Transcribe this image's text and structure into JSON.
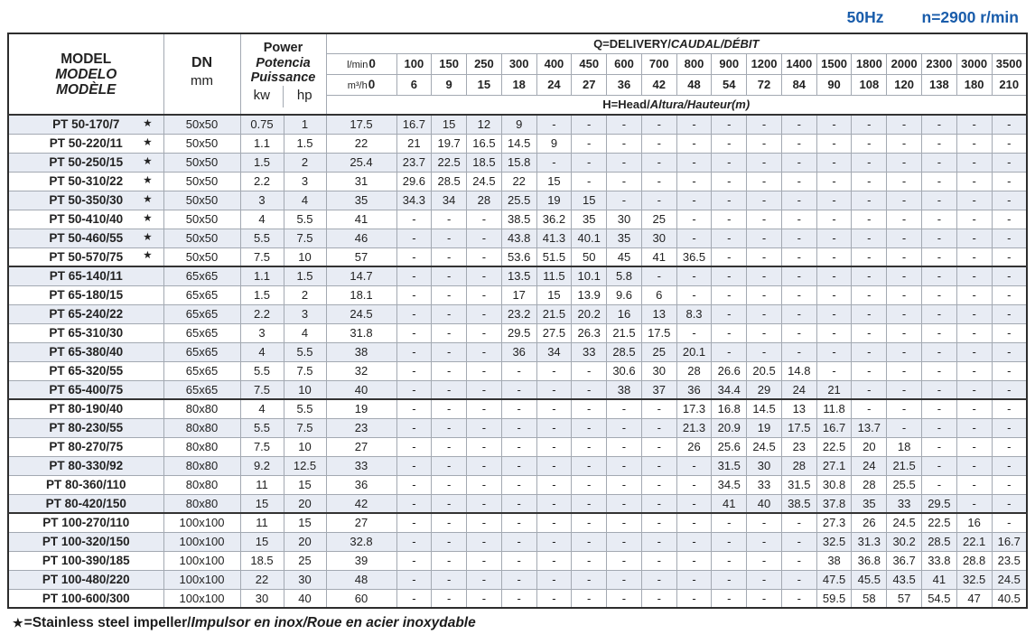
{
  "page_title": {
    "frequency": "50Hz",
    "speed": "n=2900 r/min"
  },
  "table": {
    "header": {
      "model_lines": [
        "MODEL",
        "MODELO",
        "MODÈLE"
      ],
      "dn_label": "DN",
      "dn_unit": "mm",
      "power_lines": [
        "Power",
        "Potencia",
        "Puissance"
      ],
      "power_unit_kw": "kw",
      "power_unit_hp": "hp",
      "delivery_plain": "Q=DELIVERY/",
      "delivery_italic": "CAUDAL/DÉBIT",
      "head_plain": "H=Head/",
      "head_italic": "Altura/Hauteur(m)",
      "lmin_label": "l/min",
      "m3h_label": "m³/h",
      "lmin_values": [
        "0",
        "100",
        "150",
        "250",
        "300",
        "400",
        "450",
        "600",
        "700",
        "800",
        "900",
        "1200",
        "1400",
        "1500",
        "1800",
        "2000",
        "2300",
        "3000",
        "3500"
      ],
      "m3h_values": [
        "0",
        "6",
        "9",
        "15",
        "18",
        "24",
        "27",
        "36",
        "42",
        "48",
        "54",
        "72",
        "84",
        "90",
        "108",
        "120",
        "138",
        "180",
        "210"
      ]
    },
    "star_symbol": "★",
    "rows": [
      {
        "model": "PT 50-170/7",
        "star": true,
        "dn": "50x50",
        "kw": "0.75",
        "hp": "1",
        "section_start": false,
        "values": [
          "17.5",
          "16.7",
          "15",
          "12",
          "9",
          "-",
          "-",
          "-",
          "-",
          "-",
          "-",
          "-",
          "-",
          "-",
          "-",
          "-",
          "-",
          "-",
          "-"
        ]
      },
      {
        "model": "PT 50-220/11",
        "star": true,
        "dn": "50x50",
        "kw": "1.1",
        "hp": "1.5",
        "section_start": false,
        "values": [
          "22",
          "21",
          "19.7",
          "16.5",
          "14.5",
          "9",
          "-",
          "-",
          "-",
          "-",
          "-",
          "-",
          "-",
          "-",
          "-",
          "-",
          "-",
          "-",
          "-"
        ]
      },
      {
        "model": "PT 50-250/15",
        "star": true,
        "dn": "50x50",
        "kw": "1.5",
        "hp": "2",
        "section_start": false,
        "values": [
          "25.4",
          "23.7",
          "22.5",
          "18.5",
          "15.8",
          "-",
          "-",
          "-",
          "-",
          "-",
          "-",
          "-",
          "-",
          "-",
          "-",
          "-",
          "-",
          "-",
          "-"
        ]
      },
      {
        "model": "PT 50-310/22",
        "star": true,
        "dn": "50x50",
        "kw": "2.2",
        "hp": "3",
        "section_start": false,
        "values": [
          "31",
          "29.6",
          "28.5",
          "24.5",
          "22",
          "15",
          "-",
          "-",
          "-",
          "-",
          "-",
          "-",
          "-",
          "-",
          "-",
          "-",
          "-",
          "-",
          "-"
        ]
      },
      {
        "model": "PT 50-350/30",
        "star": true,
        "dn": "50x50",
        "kw": "3",
        "hp": "4",
        "section_start": false,
        "values": [
          "35",
          "34.3",
          "34",
          "28",
          "25.5",
          "19",
          "15",
          "-",
          "-",
          "-",
          "-",
          "-",
          "-",
          "-",
          "-",
          "-",
          "-",
          "-",
          "-"
        ]
      },
      {
        "model": "PT 50-410/40",
        "star": true,
        "dn": "50x50",
        "kw": "4",
        "hp": "5.5",
        "section_start": false,
        "values": [
          "41",
          "-",
          "-",
          "-",
          "38.5",
          "36.2",
          "35",
          "30",
          "25",
          "-",
          "-",
          "-",
          "-",
          "-",
          "-",
          "-",
          "-",
          "-",
          "-"
        ]
      },
      {
        "model": "PT 50-460/55",
        "star": true,
        "dn": "50x50",
        "kw": "5.5",
        "hp": "7.5",
        "section_start": false,
        "values": [
          "46",
          "-",
          "-",
          "-",
          "43.8",
          "41.3",
          "40.1",
          "35",
          "30",
          "-",
          "-",
          "-",
          "-",
          "-",
          "-",
          "-",
          "-",
          "-",
          "-"
        ]
      },
      {
        "model": "PT 50-570/75",
        "star": true,
        "dn": "50x50",
        "kw": "7.5",
        "hp": "10",
        "section_start": false,
        "values": [
          "57",
          "-",
          "-",
          "-",
          "53.6",
          "51.5",
          "50",
          "45",
          "41",
          "36.5",
          "-",
          "-",
          "-",
          "-",
          "-",
          "-",
          "-",
          "-",
          "-"
        ]
      },
      {
        "model": "PT 65-140/11",
        "star": false,
        "dn": "65x65",
        "kw": "1.1",
        "hp": "1.5",
        "section_start": true,
        "values": [
          "14.7",
          "-",
          "-",
          "-",
          "13.5",
          "11.5",
          "10.1",
          "5.8",
          "-",
          "-",
          "-",
          "-",
          "-",
          "-",
          "-",
          "-",
          "-",
          "-",
          "-"
        ]
      },
      {
        "model": "PT 65-180/15",
        "star": false,
        "dn": "65x65",
        "kw": "1.5",
        "hp": "2",
        "section_start": false,
        "values": [
          "18.1",
          "-",
          "-",
          "-",
          "17",
          "15",
          "13.9",
          "9.6",
          "6",
          "-",
          "-",
          "-",
          "-",
          "-",
          "-",
          "-",
          "-",
          "-",
          "-"
        ]
      },
      {
        "model": "PT 65-240/22",
        "star": false,
        "dn": "65x65",
        "kw": "2.2",
        "hp": "3",
        "section_start": false,
        "values": [
          "24.5",
          "-",
          "-",
          "-",
          "23.2",
          "21.5",
          "20.2",
          "16",
          "13",
          "8.3",
          "-",
          "-",
          "-",
          "-",
          "-",
          "-",
          "-",
          "-",
          "-"
        ]
      },
      {
        "model": "PT 65-310/30",
        "star": false,
        "dn": "65x65",
        "kw": "3",
        "hp": "4",
        "section_start": false,
        "values": [
          "31.8",
          "-",
          "-",
          "-",
          "29.5",
          "27.5",
          "26.3",
          "21.5",
          "17.5",
          "-",
          "-",
          "-",
          "-",
          "-",
          "-",
          "-",
          "-",
          "-",
          "-"
        ]
      },
      {
        "model": "PT 65-380/40",
        "star": false,
        "dn": "65x65",
        "kw": "4",
        "hp": "5.5",
        "section_start": false,
        "values": [
          "38",
          "-",
          "-",
          "-",
          "36",
          "34",
          "33",
          "28.5",
          "25",
          "20.1",
          "-",
          "-",
          "-",
          "-",
          "-",
          "-",
          "-",
          "-",
          "-"
        ]
      },
      {
        "model": "PT 65-320/55",
        "star": false,
        "dn": "65x65",
        "kw": "5.5",
        "hp": "7.5",
        "section_start": false,
        "values": [
          "32",
          "-",
          "-",
          "-",
          "-",
          "-",
          "-",
          "30.6",
          "30",
          "28",
          "26.6",
          "20.5",
          "14.8",
          "-",
          "-",
          "-",
          "-",
          "-",
          "-"
        ]
      },
      {
        "model": "PT 65-400/75",
        "star": false,
        "dn": "65x65",
        "kw": "7.5",
        "hp": "10",
        "section_start": false,
        "values": [
          "40",
          "-",
          "-",
          "-",
          "-",
          "-",
          "-",
          "38",
          "37",
          "36",
          "34.4",
          "29",
          "24",
          "21",
          "-",
          "-",
          "-",
          "-",
          "-"
        ]
      },
      {
        "model": "PT 80-190/40",
        "star": false,
        "dn": "80x80",
        "kw": "4",
        "hp": "5.5",
        "section_start": true,
        "values": [
          "19",
          "-",
          "-",
          "-",
          "-",
          "-",
          "-",
          "-",
          "-",
          "17.3",
          "16.8",
          "14.5",
          "13",
          "11.8",
          "-",
          "-",
          "-",
          "-",
          "-"
        ]
      },
      {
        "model": "PT 80-230/55",
        "star": false,
        "dn": "80x80",
        "kw": "5.5",
        "hp": "7.5",
        "section_start": false,
        "values": [
          "23",
          "-",
          "-",
          "-",
          "-",
          "-",
          "-",
          "-",
          "-",
          "21.3",
          "20.9",
          "19",
          "17.5",
          "16.7",
          "13.7",
          "-",
          "-",
          "-",
          "-"
        ]
      },
      {
        "model": "PT 80-270/75",
        "star": false,
        "dn": "80x80",
        "kw": "7.5",
        "hp": "10",
        "section_start": false,
        "values": [
          "27",
          "-",
          "-",
          "-",
          "-",
          "-",
          "-",
          "-",
          "-",
          "26",
          "25.6",
          "24.5",
          "23",
          "22.5",
          "20",
          "18",
          "-",
          "-",
          "-"
        ]
      },
      {
        "model": "PT 80-330/92",
        "star": false,
        "dn": "80x80",
        "kw": "9.2",
        "hp": "12.5",
        "section_start": false,
        "values": [
          "33",
          "-",
          "-",
          "-",
          "-",
          "-",
          "-",
          "-",
          "-",
          "-",
          "31.5",
          "30",
          "28",
          "27.1",
          "24",
          "21.5",
          "-",
          "-",
          "-"
        ]
      },
      {
        "model": "PT 80-360/110",
        "star": false,
        "dn": "80x80",
        "kw": "11",
        "hp": "15",
        "section_start": false,
        "values": [
          "36",
          "-",
          "-",
          "-",
          "-",
          "-",
          "-",
          "-",
          "-",
          "-",
          "34.5",
          "33",
          "31.5",
          "30.8",
          "28",
          "25.5",
          "-",
          "-",
          "-"
        ]
      },
      {
        "model": "PT 80-420/150",
        "star": false,
        "dn": "80x80",
        "kw": "15",
        "hp": "20",
        "section_start": false,
        "values": [
          "42",
          "-",
          "-",
          "-",
          "-",
          "-",
          "-",
          "-",
          "-",
          "-",
          "41",
          "40",
          "38.5",
          "37.8",
          "35",
          "33",
          "29.5",
          "-",
          "-"
        ]
      },
      {
        "model": "PT 100-270/110",
        "star": false,
        "dn": "100x100",
        "kw": "11",
        "hp": "15",
        "section_start": true,
        "values": [
          "27",
          "-",
          "-",
          "-",
          "-",
          "-",
          "-",
          "-",
          "-",
          "-",
          "-",
          "-",
          "-",
          "27.3",
          "26",
          "24.5",
          "22.5",
          "16",
          "-"
        ]
      },
      {
        "model": "PT 100-320/150",
        "star": false,
        "dn": "100x100",
        "kw": "15",
        "hp": "20",
        "section_start": false,
        "values": [
          "32.8",
          "-",
          "-",
          "-",
          "-",
          "-",
          "-",
          "-",
          "-",
          "-",
          "-",
          "-",
          "-",
          "32.5",
          "31.3",
          "30.2",
          "28.5",
          "22.1",
          "16.7"
        ]
      },
      {
        "model": "PT 100-390/185",
        "star": false,
        "dn": "100x100",
        "kw": "18.5",
        "hp": "25",
        "section_start": false,
        "values": [
          "39",
          "-",
          "-",
          "-",
          "-",
          "-",
          "-",
          "-",
          "-",
          "-",
          "-",
          "-",
          "-",
          "38",
          "36.8",
          "36.7",
          "33.8",
          "28.8",
          "23.5"
        ]
      },
      {
        "model": "PT 100-480/220",
        "star": false,
        "dn": "100x100",
        "kw": "22",
        "hp": "30",
        "section_start": false,
        "values": [
          "48",
          "-",
          "-",
          "-",
          "-",
          "-",
          "-",
          "-",
          "-",
          "-",
          "-",
          "-",
          "-",
          "47.5",
          "45.5",
          "43.5",
          "41",
          "32.5",
          "24.5"
        ]
      },
      {
        "model": "PT 100-600/300",
        "star": false,
        "dn": "100x100",
        "kw": "30",
        "hp": "40",
        "section_start": false,
        "values": [
          "60",
          "-",
          "-",
          "-",
          "-",
          "-",
          "-",
          "-",
          "-",
          "-",
          "-",
          "-",
          "-",
          "59.5",
          "58",
          "57",
          "54.5",
          "47",
          "40.5"
        ]
      }
    ]
  },
  "footnote": {
    "symbol": "★",
    "plain": "=Stainless steel impeller/",
    "italic": "Impulsor en inox/Roue en acier inoxydable"
  },
  "colors": {
    "accent_blue": "#1a5dab",
    "row_shade": "#e8ecf4",
    "grid_line": "#a3a9b2",
    "dark_line": "#2d2d2d"
  }
}
